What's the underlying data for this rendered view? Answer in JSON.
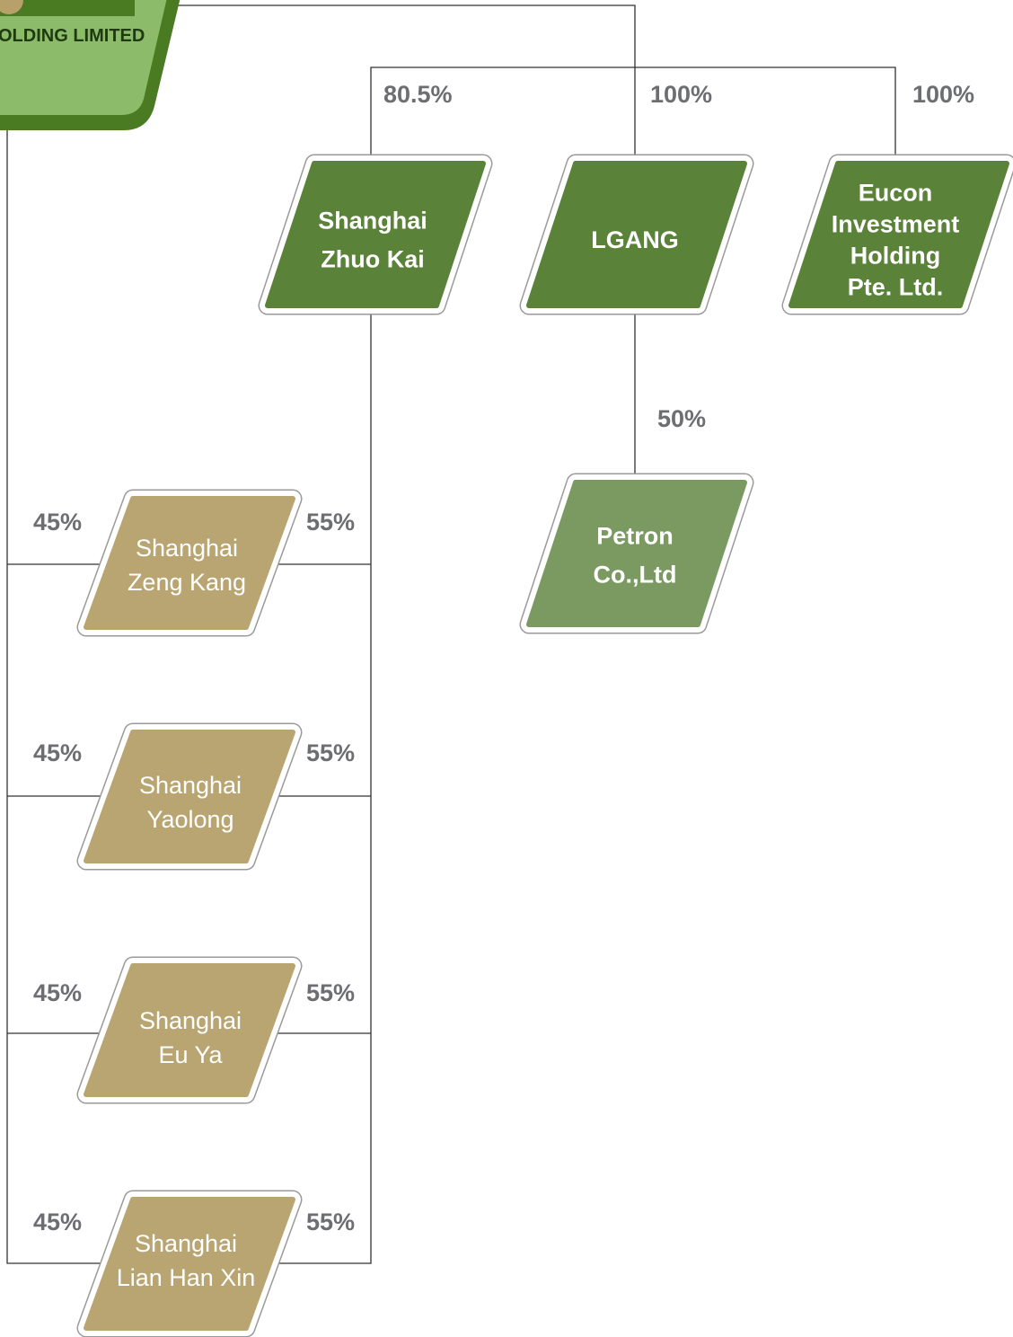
{
  "logo": {
    "text": "OLDING LIMITED"
  },
  "nodes": [
    {
      "lines": [
        "Shanghai",
        "Zhuo Kai"
      ]
    },
    {
      "lines": [
        "LGANG"
      ]
    },
    {
      "lines": [
        "Eucon",
        "Investment",
        "Holding",
        "Pte. Ltd."
      ]
    },
    {
      "lines": [
        "Petron",
        "Co.,Ltd"
      ]
    },
    {
      "lines": [
        "Shanghai",
        "Zeng Kang"
      ]
    },
    {
      "lines": [
        "Shanghai",
        "Yaolong"
      ]
    },
    {
      "lines": [
        "Shanghai",
        "Eu Ya"
      ]
    },
    {
      "lines": [
        "Shanghai",
        "Lian Han Xin"
      ]
    }
  ],
  "edges": [
    "80.5%",
    "100%",
    "100%",
    "50%",
    "45%",
    "55%",
    "45%",
    "55%",
    "45%",
    "55%",
    "45%",
    "55%"
  ]
}
